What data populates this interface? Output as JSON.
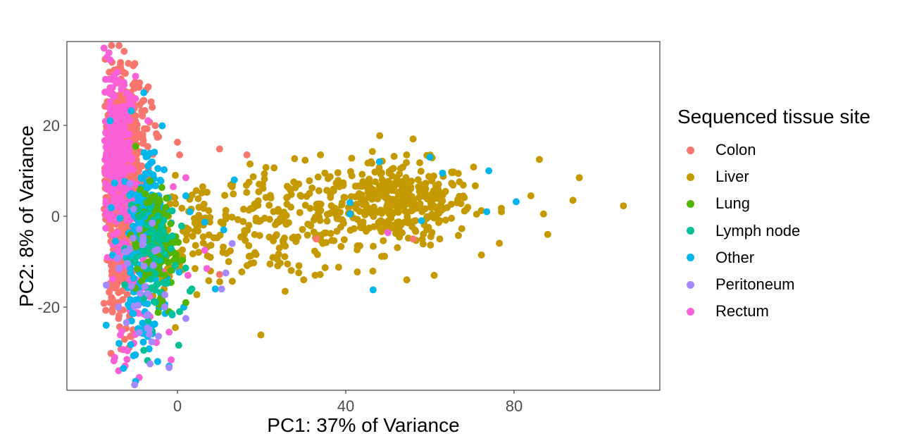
{
  "chart_data": {
    "type": "scatter",
    "title": "",
    "xlabel": "PC1: 37% of Variance",
    "ylabel": "PC2: 8% of Variance",
    "xlim": [
      -26,
      115
    ],
    "ylim": [
      -38.5,
      38
    ],
    "xticks": [
      0,
      40,
      80
    ],
    "yticks": [
      -20,
      0,
      20
    ],
    "grid": false,
    "legend": {
      "title": "Sequenced tissue site",
      "position": "right",
      "entries": [
        {
          "name": "Colon",
          "color": "#F8766D"
        },
        {
          "name": "Liver",
          "color": "#C49A00"
        },
        {
          "name": "Lung",
          "color": "#53B400"
        },
        {
          "name": "Lymph node",
          "color": "#00C094"
        },
        {
          "name": "Other",
          "color": "#00B6EB"
        },
        {
          "name": "Peritoneum",
          "color": "#A58AFF"
        },
        {
          "name": "Rectum",
          "color": "#FB61D7"
        }
      ]
    },
    "series": [
      {
        "name": "Liver",
        "color": "#C49A00",
        "clusters": [
          {
            "cx": 52,
            "cy": 3,
            "sx": 9,
            "sy": 4.5,
            "n": 380
          },
          {
            "cx": 25,
            "cy": -2,
            "sx": 9,
            "sy": 6,
            "n": 170
          },
          {
            "cx": 5,
            "cy": -3,
            "sx": 4,
            "sy": 5,
            "n": 60
          },
          {
            "cx": -3,
            "cy": -8,
            "sx": 2,
            "sy": 6,
            "n": 40
          }
        ],
        "points": [
          [
            106,
            2.3
          ],
          [
            95.5,
            8.5
          ],
          [
            94,
            3.5
          ],
          [
            88,
            -4
          ],
          [
            87,
            0.5
          ],
          [
            86,
            12.5
          ],
          [
            84,
            4.5
          ],
          [
            77,
            1
          ],
          [
            56,
            17
          ],
          [
            60,
            13
          ],
          [
            34,
            13.5
          ],
          [
            46,
            12
          ],
          [
            17,
            7.5
          ],
          [
            30,
            -14
          ],
          [
            6,
            6.5
          ],
          [
            -0.5,
            9
          ],
          [
            -0.5,
            -24.5
          ],
          [
            54.5,
            -14
          ],
          [
            61,
            -13
          ],
          [
            22,
            -10.5
          ],
          [
            13,
            6.5
          ]
        ]
      },
      {
        "name": "Colon",
        "color": "#F8766D",
        "clusters": [
          {
            "cx": -13,
            "cy": 5,
            "sx": 2.2,
            "sy": 12,
            "n": 700
          },
          {
            "cx": -10,
            "cy": 17,
            "sx": 2,
            "sy": 6,
            "n": 60
          }
        ],
        "points": [
          [
            -13,
            31.8
          ],
          [
            -8,
            25.5
          ],
          [
            -6,
            24
          ],
          [
            -7,
            21
          ],
          [
            -4.5,
            17.5
          ],
          [
            0,
            16.3
          ],
          [
            0.5,
            13.5
          ],
          [
            10,
            14.8
          ],
          [
            16.5,
            13.5
          ],
          [
            -14,
            -22.5
          ],
          [
            -11,
            -26.5
          ],
          [
            10,
            -12.8
          ],
          [
            33,
            -5
          ],
          [
            56,
            -5
          ]
        ]
      },
      {
        "name": "Rectum",
        "color": "#FB61D7",
        "clusters": [
          {
            "cx": -14.5,
            "cy": 15,
            "sx": 1.8,
            "sy": 8,
            "n": 300
          },
          {
            "cx": -10,
            "cy": -10,
            "sx": 3,
            "sy": 10,
            "n": 70
          }
        ],
        "points": [
          [
            -16,
            28.3
          ],
          [
            -13,
            28.5
          ],
          [
            -7,
            21
          ],
          [
            -1,
            6.5
          ],
          [
            2,
            8.5
          ],
          [
            6.5,
            -7.5
          ],
          [
            7,
            -11.5
          ],
          [
            2.5,
            -13
          ],
          [
            -2,
            -25.5
          ],
          [
            -5,
            -27.8
          ],
          [
            -14,
            -34
          ],
          [
            -12,
            -31.5
          ],
          [
            -10,
            -26
          ],
          [
            50,
            -3.6
          ]
        ]
      },
      {
        "name": "Other",
        "color": "#00B6EB",
        "clusters": [
          {
            "cx": -7.5,
            "cy": 1,
            "sx": 2.2,
            "sy": 3,
            "n": 90
          },
          {
            "cx": -8,
            "cy": -12,
            "sx": 3.2,
            "sy": 9,
            "n": 130
          },
          {
            "cx": -6,
            "cy": 9,
            "sx": 1.5,
            "sy": 4,
            "n": 30
          }
        ],
        "points": [
          [
            -8,
            27.2
          ],
          [
            -11,
            23.2
          ],
          [
            -16,
            21
          ],
          [
            2,
            4.5
          ],
          [
            3,
            1
          ],
          [
            6.5,
            -1.3
          ],
          [
            9,
            -16
          ],
          [
            11,
            -3
          ],
          [
            1.5,
            -20
          ],
          [
            -2,
            -33
          ],
          [
            -10,
            -30.5
          ],
          [
            13.5,
            8
          ],
          [
            41,
            3
          ],
          [
            46.5,
            -16.2
          ],
          [
            48,
            12
          ],
          [
            60,
            13
          ],
          [
            63,
            9.5
          ],
          [
            74,
            10
          ],
          [
            80.5,
            3.2
          ],
          [
            73.5,
            1
          ],
          [
            58,
            -1
          ],
          [
            41,
            0.5
          ]
        ]
      },
      {
        "name": "Lung",
        "color": "#53B400",
        "clusters": [
          {
            "cx": -5,
            "cy": -6,
            "sx": 2.5,
            "sy": 6,
            "n": 110
          }
        ],
        "points": [
          [
            -3,
            -13
          ],
          [
            -4,
            -18
          ],
          [
            -2,
            -21
          ],
          [
            2,
            -19
          ],
          [
            -9,
            -3
          ]
        ]
      },
      {
        "name": "Lymph node",
        "color": "#00C094",
        "clusters": [
          {
            "cx": -6.5,
            "cy": -8,
            "sx": 3,
            "sy": 8,
            "n": 70
          }
        ],
        "points": [
          [
            -7,
            -23
          ],
          [
            -8,
            -29.5
          ],
          [
            0.5,
            -21
          ],
          [
            3,
            -16.5
          ]
        ]
      },
      {
        "name": "Peritoneum",
        "color": "#A58AFF",
        "clusters": [
          {
            "cx": -9,
            "cy": -14,
            "sx": 3.5,
            "sy": 10,
            "n": 35
          }
        ],
        "points": [
          [
            -2,
            -33.3
          ],
          [
            -6.5,
            -32.5
          ],
          [
            2,
            -22.5
          ],
          [
            -3,
            -17.3
          ],
          [
            10.5,
            -16
          ],
          [
            11.5,
            -12.5
          ],
          [
            13,
            -6
          ],
          [
            -6,
            -1.5
          ]
        ]
      }
    ]
  }
}
